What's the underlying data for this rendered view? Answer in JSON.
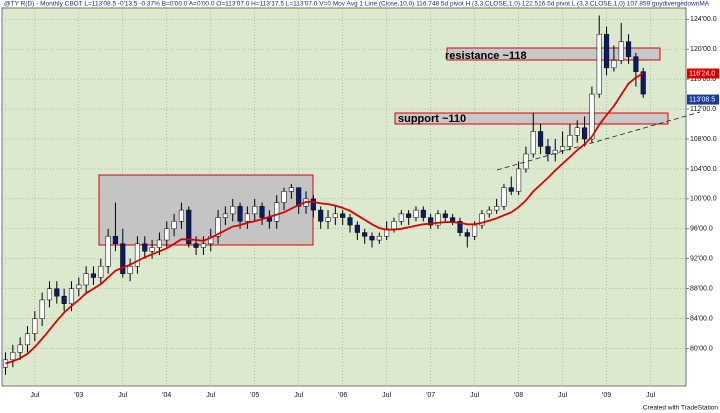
{
  "chart_data": {
    "type": "candlestick",
    "title": "@TY R(D) - Monthly  CBOT  L=113'08.5  -0'13.5  -0.37%  B=0'00.0  A=0'00.0  O=113'07.0  H=113'17.5  L=113'07.0  V=0   Mov Avg 1 Line (Close,10,0)  116.748   5d pivot H (3,3,CLOSE,1,0)  122.516   5d pivot L (3,3,CLOSE,1,0)  107.859   guydivergedownMA",
    "categories": [
      null,
      null,
      null,
      null,
      "Jul",
      null,
      null,
      null,
      null,
      null,
      "'03",
      null,
      null,
      null,
      null,
      null,
      "Jul",
      null,
      null,
      null,
      null,
      null,
      "'04",
      null,
      null,
      null,
      null,
      null,
      "Jul",
      null,
      null,
      null,
      null,
      null,
      "'05",
      null,
      null,
      null,
      null,
      null,
      "Jul",
      null,
      null,
      null,
      null,
      null,
      "'06",
      null,
      null,
      null,
      null,
      null,
      "Jul",
      null,
      null,
      null,
      null,
      null,
      "'07",
      null,
      null,
      null,
      null,
      null,
      "Jul",
      null,
      null,
      null,
      null,
      null,
      "'08",
      null,
      null,
      null,
      null,
      null,
      "Jul",
      null,
      null,
      null,
      null,
      null,
      "'09",
      null,
      null,
      null,
      null,
      null,
      "Jul"
    ],
    "open": [
      77.5,
      78.5,
      79.5,
      80.5,
      82,
      84,
      86.5,
      88,
      87,
      86,
      88,
      88.5,
      90,
      89.5,
      91,
      95,
      94,
      90,
      91,
      94,
      93,
      93.5,
      94.5,
      96,
      97,
      98.5,
      94,
      93.5,
      94,
      95,
      97.5,
      98,
      99,
      97,
      98,
      99,
      97.5,
      97,
      99.5,
      101,
      101.5,
      99,
      100,
      98.5,
      97,
      97.5,
      98,
      97.5,
      96.5,
      95.5,
      95,
      94.5,
      95,
      96,
      97,
      98,
      97.5,
      98.5,
      97.5,
      96.5,
      98,
      97.5,
      97,
      95.5,
      95,
      96.5,
      98,
      98.5,
      99,
      101.5,
      101,
      104,
      106,
      109,
      107,
      106,
      106.5,
      107,
      108.5,
      109.5,
      108,
      114,
      122,
      117.5,
      118.5,
      121,
      119,
      117,
      null
    ],
    "high": [
      79.5,
      80.5,
      81.5,
      83,
      85,
      87.5,
      89,
      89,
      88,
      89,
      89.5,
      91,
      91,
      92,
      96,
      99.5,
      96,
      92,
      95,
      95,
      94.5,
      95.5,
      97,
      98,
      99.5,
      99,
      95,
      95,
      96,
      98.5,
      99,
      100,
      99.5,
      99,
      100,
      99.5,
      98.5,
      100.5,
      101.5,
      102,
      101.5,
      101,
      100.5,
      99,
      98.5,
      99,
      98.5,
      98,
      97,
      96,
      95.5,
      95.5,
      97,
      97.5,
      98.5,
      98.5,
      99,
      99,
      98,
      98.5,
      98.5,
      98,
      97.5,
      96,
      97,
      98.5,
      99,
      100,
      102,
      103,
      105,
      107,
      111.5,
      110,
      108,
      108,
      109,
      110,
      110.5,
      111,
      115,
      124.5,
      123,
      120.5,
      123.5,
      122,
      119.5,
      117.5,
      null
    ],
    "low": [
      76.5,
      77.5,
      78.5,
      79.5,
      81,
      83,
      85.5,
      86,
      85,
      85,
      87,
      87.5,
      88.5,
      88.5,
      90,
      93,
      89.5,
      89,
      90,
      92,
      92,
      92.5,
      93.5,
      95,
      96,
      93.5,
      92.5,
      92.5,
      93,
      94,
      96.5,
      97,
      96,
      96,
      97,
      96.5,
      96,
      96,
      98.5,
      100,
      98,
      98,
      97.5,
      96,
      96,
      96.5,
      96.5,
      95.5,
      94.5,
      94,
      93.5,
      94,
      94.5,
      95.5,
      96.5,
      96.5,
      97,
      97,
      96,
      96,
      97,
      96.5,
      95,
      93.5,
      94.5,
      96,
      97.5,
      98,
      98.5,
      100.5,
      100.5,
      103.5,
      105.5,
      106,
      105,
      105,
      106,
      106.5,
      107.5,
      107,
      107.5,
      113.5,
      116.5,
      117,
      118,
      118,
      115,
      113.5,
      null
    ],
    "close": [
      78.5,
      79.5,
      80.5,
      82,
      84,
      86.5,
      88,
      87,
      86,
      88,
      88.5,
      90,
      89.5,
      91,
      95,
      94,
      90,
      91,
      94,
      93,
      93.5,
      94.5,
      96,
      97,
      98.5,
      94,
      93.5,
      94,
      95,
      97.5,
      98,
      99,
      97,
      98,
      99,
      97.5,
      97,
      99.5,
      101,
      101.5,
      99,
      100,
      98.5,
      97,
      97.5,
      98,
      97.5,
      96.5,
      95.5,
      95,
      94.5,
      95,
      96,
      97,
      98,
      97.5,
      98.5,
      97.5,
      96.5,
      98,
      97.5,
      97,
      95.5,
      95,
      96.5,
      98,
      98.5,
      99,
      101.5,
      101,
      104,
      106,
      109,
      107,
      106,
      106.5,
      107,
      108.5,
      109.5,
      108,
      114,
      122,
      117.5,
      118.5,
      121,
      119,
      117,
      114,
      null
    ],
    "up_color": "#ffffff",
    "down_color": "#0c1a6a",
    "ma": {
      "color": "#e00000",
      "values": [
        78.0,
        78.3,
        78.7,
        79.3,
        80.2,
        81.3,
        82.5,
        83.7,
        84.8,
        85.7,
        86.5,
        87.4,
        88.0,
        88.6,
        89.5,
        90.4,
        90.8,
        91.2,
        91.7,
        92.2,
        92.6,
        93.0,
        93.4,
        94.0,
        94.6,
        94.6,
        94.5,
        94.4,
        94.8,
        95.3,
        95.8,
        96.3,
        96.5,
        96.8,
        97.0,
        97.3,
        97.6,
        97.9,
        98.2,
        98.7,
        99.2,
        99.6,
        99.6,
        99.4,
        99.3,
        99.1,
        98.8,
        98.4,
        97.8,
        97.2,
        96.6,
        96.1,
        95.9,
        95.9,
        96.0,
        96.2,
        96.4,
        96.6,
        96.7,
        96.8,
        96.9,
        96.9,
        96.8,
        96.6,
        96.6,
        96.8,
        97.1,
        97.4,
        97.8,
        98.2,
        98.9,
        99.8,
        101.0,
        101.9,
        102.8,
        103.8,
        104.7,
        105.6,
        106.5,
        107.3,
        108.3,
        109.9,
        111.2,
        112.4,
        113.9,
        115.4,
        116.2,
        116.8,
        null
      ]
    },
    "ylim": [
      75,
      125.5
    ],
    "yticks": [
      {
        "value": 80,
        "label": "80'00.0"
      },
      {
        "value": 84,
        "label": "84'00.0"
      },
      {
        "value": 88,
        "label": "88'00.0"
      },
      {
        "value": 92,
        "label": "92'00.0"
      },
      {
        "value": 96,
        "label": "96'00.0"
      },
      {
        "value": 100,
        "label": "100'00.0"
      },
      {
        "value": 104,
        "label": "104'00.0"
      },
      {
        "value": 108,
        "label": "108'00.0"
      },
      {
        "value": 112,
        "label": "112'00.0"
      },
      {
        "value": 116,
        "label": "116'00.0"
      },
      {
        "value": 120,
        "label": "120'00.0"
      },
      {
        "value": 124,
        "label": "124'00.0"
      }
    ],
    "price_flags": [
      {
        "value": 116.75,
        "label": "116'24.0",
        "color": "#e00000"
      },
      {
        "value": 113.265,
        "label": "113'08.5",
        "color": "#1a3aa0"
      }
    ],
    "annotations": [
      "resistance ~118",
      "support ~110"
    ],
    "grid": true,
    "footer": "Created with TradeStation"
  }
}
